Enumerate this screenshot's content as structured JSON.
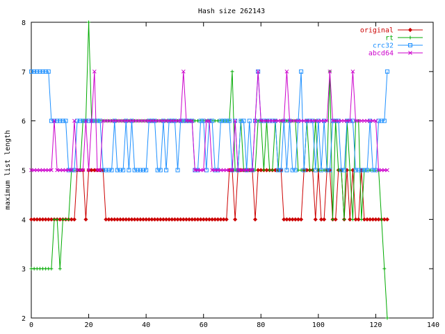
{
  "chart_data": {
    "type": "line",
    "title": "Hash size 262143",
    "xlabel": "",
    "ylabel": "maximum list length",
    "xlim": [
      0,
      140
    ],
    "ylim": [
      2,
      8
    ],
    "x_ticks": [
      "0",
      "20",
      "40",
      "60",
      "80",
      "100",
      "120",
      "140"
    ],
    "y_ticks": [
      "2",
      "3",
      "4",
      "5",
      "6",
      "7",
      "8"
    ],
    "grid": false,
    "legend_position": "top-right",
    "x": [
      0,
      1,
      2,
      3,
      4,
      5,
      6,
      7,
      8,
      9,
      10,
      11,
      12,
      13,
      14,
      15,
      16,
      17,
      18,
      19,
      20,
      21,
      22,
      23,
      24,
      25,
      26,
      27,
      28,
      29,
      30,
      31,
      32,
      33,
      34,
      35,
      36,
      37,
      38,
      39,
      40,
      41,
      42,
      43,
      44,
      45,
      46,
      47,
      48,
      49,
      50,
      51,
      52,
      53,
      54,
      55,
      56,
      57,
      58,
      59,
      60,
      61,
      62,
      63,
      64,
      65,
      66,
      67,
      68,
      69,
      70,
      71,
      72,
      73,
      74,
      75,
      76,
      77,
      78,
      79,
      80,
      81,
      82,
      83,
      84,
      85,
      86,
      87,
      88,
      89,
      90,
      91,
      92,
      93,
      94,
      95,
      96,
      97,
      98,
      99,
      100,
      101,
      102,
      103,
      104,
      105,
      106,
      107,
      108,
      109,
      110,
      111,
      112,
      113,
      114,
      115,
      116,
      117,
      118,
      119,
      120,
      121,
      122,
      123,
      124
    ],
    "series": [
      {
        "name": "original",
        "color": "#cc0000",
        "marker": "diamond",
        "values": [
          4,
          4,
          4,
          4,
          4,
          4,
          4,
          4,
          4,
          4,
          4,
          4,
          4,
          4,
          4,
          4,
          5,
          5,
          5,
          4,
          5,
          5,
          5,
          5,
          5,
          5,
          4,
          4,
          4,
          4,
          4,
          4,
          4,
          4,
          4,
          4,
          4,
          4,
          4,
          4,
          4,
          4,
          4,
          4,
          4,
          4,
          4,
          4,
          4,
          4,
          4,
          4,
          4,
          4,
          4,
          4,
          4,
          4,
          4,
          4,
          4,
          4,
          4,
          4,
          4,
          4,
          4,
          4,
          4,
          5,
          5,
          4,
          5,
          5,
          5,
          5,
          5,
          5,
          4,
          5,
          5,
          5,
          5,
          5,
          5,
          5,
          5,
          5,
          4,
          4,
          4,
          4,
          4,
          4,
          4,
          5,
          5,
          5,
          5,
          4,
          5,
          4,
          4,
          5,
          5,
          4,
          4,
          5,
          5,
          4,
          5,
          4,
          5,
          4,
          4,
          5,
          4,
          4,
          4,
          4,
          4,
          4,
          4,
          4,
          4
        ]
      },
      {
        "name": "rt",
        "color": "#00aa00",
        "marker": "plus",
        "values": [
          3,
          3,
          3,
          3,
          3,
          3,
          3,
          3,
          4,
          4,
          3,
          4,
          4,
          4,
          5,
          5,
          5,
          5,
          6,
          6,
          8,
          6,
          6,
          6,
          6,
          6,
          6,
          6,
          6,
          6,
          6,
          6,
          6,
          6,
          6,
          6,
          6,
          6,
          6,
          6,
          6,
          6,
          6,
          6,
          6,
          6,
          6,
          6,
          6,
          6,
          6,
          6,
          6,
          6,
          6,
          6,
          6,
          6,
          6,
          6,
          6,
          6,
          6,
          6,
          6,
          6,
          6,
          6,
          6,
          6,
          7,
          5,
          5,
          6,
          5,
          5,
          5,
          5,
          5,
          6,
          6,
          5,
          6,
          5,
          5,
          6,
          5,
          6,
          6,
          6,
          6,
          6,
          6,
          5,
          5,
          5,
          6,
          5,
          5,
          6,
          5,
          5,
          5,
          5,
          7,
          4,
          6,
          5,
          5,
          4,
          6,
          5,
          4,
          6,
          6,
          4,
          5,
          5,
          5,
          5,
          5,
          5,
          4,
          3,
          2
        ]
      },
      {
        "name": "crc32",
        "color": "#1e90ff",
        "marker": "square",
        "values": [
          7,
          7,
          7,
          7,
          7,
          7,
          7,
          6,
          6,
          6,
          6,
          6,
          6,
          5,
          5,
          5,
          6,
          6,
          6,
          6,
          6,
          6,
          6,
          6,
          6,
          5,
          5,
          5,
          5,
          6,
          5,
          5,
          5,
          6,
          5,
          6,
          5,
          5,
          5,
          5,
          5,
          6,
          6,
          6,
          5,
          5,
          6,
          5,
          6,
          6,
          6,
          5,
          6,
          6,
          6,
          6,
          6,
          5,
          5,
          6,
          6,
          5,
          6,
          6,
          5,
          5,
          6,
          6,
          6,
          6,
          5,
          6,
          5,
          6,
          6,
          5,
          6,
          5,
          6,
          7,
          6,
          6,
          6,
          6,
          6,
          6,
          5,
          5,
          6,
          5,
          6,
          5,
          5,
          6,
          7,
          5,
          6,
          6,
          6,
          5,
          6,
          5,
          6,
          5,
          5,
          6,
          6,
          6,
          5,
          5,
          6,
          6,
          6,
          5,
          5,
          5,
          5,
          5,
          6,
          5,
          5,
          6,
          6,
          6,
          7
        ]
      },
      {
        "name": "abcd64",
        "color": "#cc00cc",
        "marker": "cross",
        "values": [
          5,
          5,
          5,
          5,
          5,
          5,
          5,
          5,
          6,
          5,
          5,
          5,
          5,
          5,
          5,
          6,
          5,
          5,
          5,
          6,
          5,
          6,
          7,
          5,
          5,
          6,
          6,
          6,
          6,
          6,
          6,
          6,
          6,
          6,
          6,
          6,
          6,
          6,
          6,
          6,
          6,
          6,
          6,
          6,
          6,
          6,
          6,
          6,
          6,
          6,
          6,
          6,
          6,
          7,
          6,
          6,
          6,
          5,
          5,
          5,
          5,
          6,
          6,
          5,
          5,
          5,
          5,
          5,
          5,
          5,
          5,
          6,
          5,
          5,
          5,
          5,
          5,
          5,
          6,
          7,
          6,
          6,
          6,
          6,
          6,
          6,
          6,
          6,
          6,
          7,
          6,
          6,
          6,
          6,
          6,
          6,
          6,
          6,
          6,
          6,
          6,
          6,
          6,
          6,
          7,
          6,
          6,
          6,
          6,
          6,
          6,
          6,
          7,
          6,
          6,
          6,
          6,
          6,
          6,
          6,
          6,
          5,
          5,
          5,
          5
        ]
      }
    ]
  }
}
